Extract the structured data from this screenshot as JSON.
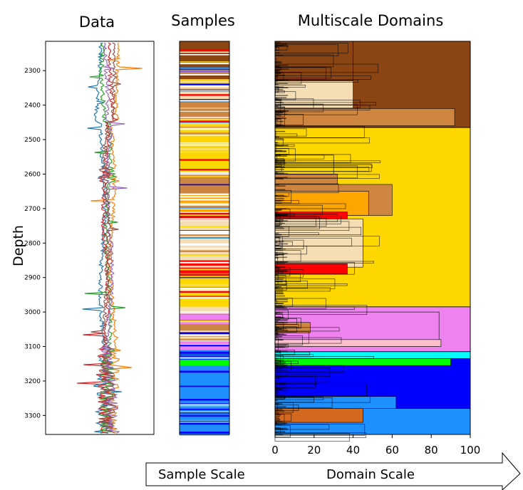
{
  "chart_data": [
    {
      "type": "line",
      "title": "Data",
      "ylabel": "Depth",
      "ylim": [
        2215,
        3355
      ],
      "yticks": [
        2300,
        2400,
        2500,
        2600,
        2700,
        2800,
        2900,
        3000,
        3100,
        3200,
        3300
      ],
      "series_colors": [
        "#1f77b4",
        "#ff7f0e",
        "#2ca02c",
        "#d62728",
        "#9467bd",
        "#8c564b"
      ]
    },
    {
      "type": "heatmap",
      "title": "Samples",
      "ylim": [
        2215,
        3355
      ],
      "segments": [
        {
          "from": 2215,
          "to": 2330,
          "color": "#8B4513"
        },
        {
          "from": 2330,
          "to": 2390,
          "color": "#F5DEB3"
        },
        {
          "from": 2390,
          "to": 2440,
          "color": "#CD853F"
        },
        {
          "from": 2440,
          "to": 2455,
          "color": "#F5DEB3"
        },
        {
          "from": 2455,
          "to": 2600,
          "color": "#FFD700"
        },
        {
          "from": 2600,
          "to": 2660,
          "color": "#CD853F"
        },
        {
          "from": 2660,
          "to": 2710,
          "color": "#FFA500"
        },
        {
          "from": 2710,
          "to": 2730,
          "color": "#FF0000"
        },
        {
          "from": 2730,
          "to": 2850,
          "color": "#F5DEB3"
        },
        {
          "from": 2850,
          "to": 2895,
          "color": "#FF0000"
        },
        {
          "from": 2895,
          "to": 2985,
          "color": "#FFD700"
        },
        {
          "from": 2985,
          "to": 3005,
          "color": "#F5DEB3"
        },
        {
          "from": 3005,
          "to": 3035,
          "color": "#EE82EE"
        },
        {
          "from": 3035,
          "to": 3080,
          "color": "#CD853F"
        },
        {
          "from": 3080,
          "to": 3110,
          "color": "#EE82EE"
        },
        {
          "from": 3110,
          "to": 3140,
          "color": "#1E90FF"
        },
        {
          "from": 3140,
          "to": 3155,
          "color": "#00FF00"
        },
        {
          "from": 3155,
          "to": 3355,
          "color": "#1E90FF"
        }
      ]
    },
    {
      "type": "heatmap",
      "title": "Multiscale Domains",
      "xlim": [
        0,
        100
      ],
      "xticks": [
        0,
        20,
        40,
        60,
        80,
        100
      ],
      "ylim": [
        2215,
        3355
      ],
      "domains": [
        {
          "from": 2215,
          "to": 2465,
          "color": "#8B4513"
        },
        {
          "from": 2465,
          "to": 2985,
          "color": "#FFD700"
        },
        {
          "from": 2985,
          "to": 3115,
          "color": "#EE82EE"
        },
        {
          "from": 3115,
          "to": 3135,
          "color": "#00FFFF"
        },
        {
          "from": 3135,
          "to": 3355,
          "color": "#0000FF"
        }
      ],
      "sub_domains": [
        {
          "from": 2215,
          "to": 2330,
          "x": 40,
          "color": "#8B4513"
        },
        {
          "from": 2330,
          "to": 2410,
          "x": 40,
          "color": "#F5DEB3"
        },
        {
          "from": 2410,
          "to": 2460,
          "x": 92,
          "color": "#CD853F"
        },
        {
          "from": 2545,
          "to": 2600,
          "x": 30,
          "color": "#FFD700"
        },
        {
          "from": 2600,
          "to": 2630,
          "x": 32,
          "color": "#CD853F"
        },
        {
          "from": 2630,
          "to": 2720,
          "x": 60,
          "color": "#CD853F"
        },
        {
          "from": 2650,
          "to": 2720,
          "x": 48,
          "color": "#FFA500"
        },
        {
          "from": 2710,
          "to": 2730,
          "x": 37,
          "color": "#FF0000"
        },
        {
          "from": 2730,
          "to": 2870,
          "x": 45,
          "color": "#F5DEB3"
        },
        {
          "from": 2860,
          "to": 2890,
          "x": 37,
          "color": "#FF0000"
        },
        {
          "from": 3000,
          "to": 3100,
          "x": 84,
          "color": "#EE82EE"
        },
        {
          "from": 3030,
          "to": 3060,
          "x": 18,
          "color": "#CD853F"
        },
        {
          "from": 3080,
          "to": 3100,
          "x": 85,
          "color": "#FFC0CB"
        },
        {
          "from": 3135,
          "to": 3155,
          "x": 90,
          "color": "#00FF00"
        },
        {
          "from": 3155,
          "to": 3175,
          "x": 35,
          "color": "#0000FF"
        },
        {
          "from": 3280,
          "to": 3355,
          "x": 100,
          "color": "#1E90FF"
        },
        {
          "from": 3245,
          "to": 3280,
          "x": 62,
          "color": "#1E90FF"
        },
        {
          "from": 3280,
          "to": 3320,
          "x": 45,
          "color": "#D2691E"
        }
      ]
    }
  ],
  "arrow": {
    "left_label": "Sample Scale",
    "right_label": "Domain Scale"
  }
}
